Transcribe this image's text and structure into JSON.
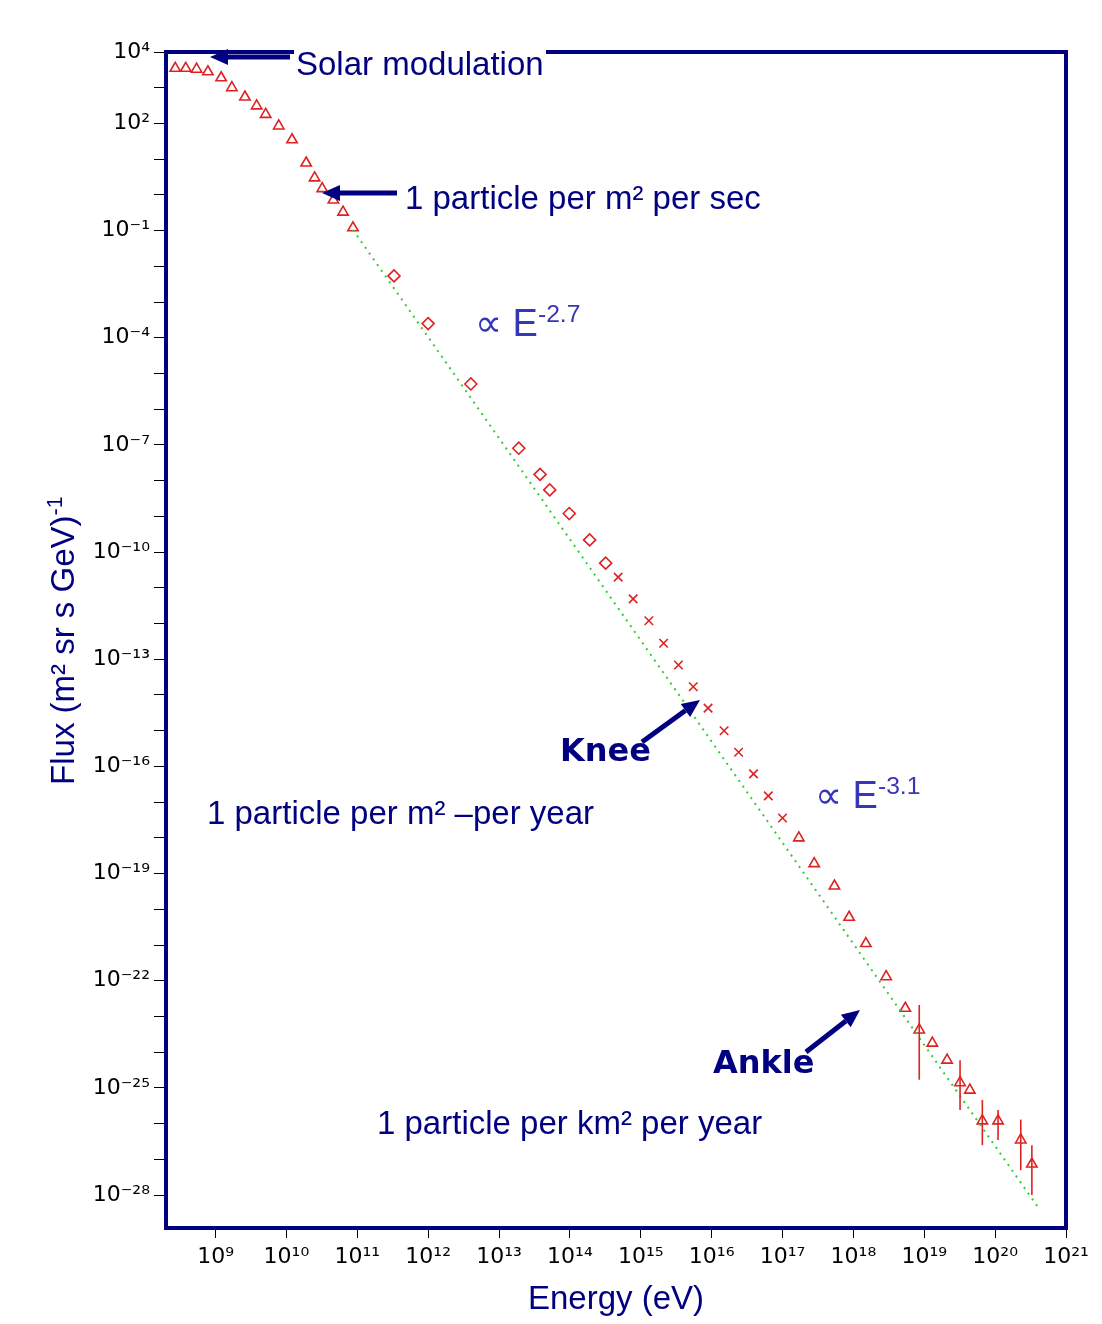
{
  "chart_data": {
    "type": "scatter",
    "xlabel": "Energy (eV)",
    "ylabel": "Flux (m² sr s GeV)$^{-1}$",
    "log": "xy",
    "grid": false,
    "legend": false,
    "xlim": [
      200000000.0,
      1e+21
    ],
    "ylim": [
      1.2e-29,
      10000.0
    ],
    "xticks": [
      {
        "value": 1000000000.0,
        "label": "10⁹"
      },
      {
        "value": 10000000000.0,
        "label": "10¹⁰"
      },
      {
        "value": 100000000000.0,
        "label": "10¹¹"
      },
      {
        "value": 1000000000000.0,
        "label": "10¹²"
      },
      {
        "value": 10000000000000.0,
        "label": "10¹³"
      },
      {
        "value": 100000000000000.0,
        "label": "10¹⁴"
      },
      {
        "value": 1000000000000000.0,
        "label": "10¹⁵"
      },
      {
        "value": 1e+16,
        "label": "10¹⁶"
      },
      {
        "value": 1e+17,
        "label": "10¹⁷"
      },
      {
        "value": 1e+18,
        "label": "10¹⁸"
      },
      {
        "value": 1e+19,
        "label": "10¹⁹"
      },
      {
        "value": 1e+20,
        "label": "10²⁰"
      },
      {
        "value": 1e+21,
        "label": "10²¹"
      }
    ],
    "yticks": [
      {
        "value": 10000.0,
        "label": "10⁴"
      },
      {
        "value": 1000.0,
        "label": null
      },
      {
        "value": 100.0,
        "label": "10²"
      },
      {
        "value": 10.0,
        "label": null
      },
      {
        "value": 1,
        "label": null
      },
      {
        "value": 0.1,
        "label": "10⁻¹"
      },
      {
        "value": 0.01,
        "label": null
      },
      {
        "value": 0.001,
        "label": null
      },
      {
        "value": 0.0001,
        "label": "10⁻⁴"
      },
      {
        "value": 1e-05,
        "label": null
      },
      {
        "value": 1e-06,
        "label": null
      },
      {
        "value": 1e-07,
        "label": "10⁻⁷"
      },
      {
        "value": 1e-08,
        "label": null
      },
      {
        "value": 1e-09,
        "label": null
      },
      {
        "value": 1e-10,
        "label": "10⁻¹⁰"
      },
      {
        "value": 1e-11,
        "label": null
      },
      {
        "value": 1e-12,
        "label": null
      },
      {
        "value": 1e-13,
        "label": "10⁻¹³"
      },
      {
        "value": 1e-14,
        "label": null
      },
      {
        "value": 1e-15,
        "label": null
      },
      {
        "value": 1e-16,
        "label": "10⁻¹⁶"
      },
      {
        "value": 1e-17,
        "label": null
      },
      {
        "value": 1e-18,
        "label": null
      },
      {
        "value": 1e-19,
        "label": "10⁻¹⁹"
      },
      {
        "value": 1e-20,
        "label": null
      },
      {
        "value": 1e-21,
        "label": null
      },
      {
        "value": 1e-22,
        "label": "10⁻²²"
      },
      {
        "value": 1e-23,
        "label": null
      },
      {
        "value": 1e-24,
        "label": null
      },
      {
        "value": 1e-25,
        "label": "10⁻²⁵"
      },
      {
        "value": 1e-26,
        "label": null
      },
      {
        "value": 1e-27,
        "label": null
      },
      {
        "value": 1e-28,
        "label": "10⁻²⁸"
      }
    ],
    "series": [
      {
        "type": "line",
        "color": "#33cc33",
        "line_style": "dotted",
        "marker": "none",
        "x": [
          87000000000.0,
          4.3e+20
        ],
        "values": [
          0.105,
          3.8e-29
        ]
      },
      {
        "color": "#dd2222",
        "marker": "triangle",
        "x": [
          270000000.0,
          380000000.0,
          540000000.0,
          780000000.0,
          1200000000.0,
          1700000000.0,
          2600000000.0,
          3800000000.0,
          5100000000.0,
          7800000000.0,
          12000000000.0,
          19000000000.0,
          25000000000.0,
          32000000000.0,
          46000000000.0,
          63000000000.0,
          87000000000.0
        ],
        "values": [
          3500,
          3500,
          3300,
          2800,
          1900,
          1000,
          550,
          310,
          180,
          85,
          35,
          7.8,
          3.0,
          1.5,
          0.72,
          0.33,
          0.12
        ]
      },
      {
        "color": "#dd2222",
        "marker": "diamond",
        "x": [
          330000000000.0,
          1000000000000.0,
          4000000000000.0,
          19000000000000.0,
          38000000000000.0,
          52000000000000.0,
          98000000000000.0,
          190000000000000.0,
          320000000000000.0
        ],
        "values": [
          0.0054,
          0.00025,
          5.1e-06,
          8.1e-08,
          1.5e-08,
          5.5e-09,
          1.2e-09,
          2.2e-10,
          4.9e-11
        ]
      },
      {
        "color": "#dd2222",
        "marker": "cross",
        "x": [
          480000000000000.0,
          780000000000000.0,
          1300000000000000.0,
          2100000000000000.0,
          3400000000000000.0,
          5500000000000000.0,
          8900000000000000.0,
          1.5e+16,
          2.4e+16,
          3.9e+16,
          6.3e+16,
          1e+17
        ],
        "values": [
          2e-11,
          4.9e-12,
          1.2e-12,
          2.8e-13,
          6.9e-14,
          1.7e-14,
          4.3e-15,
          1e-15,
          2.5e-16,
          6.2e-17,
          1.5e-17,
          3.6e-18
        ]
      },
      {
        "color": "#dd2222",
        "marker": "triangle",
        "x": [
          1.7e+17,
          2.8e+17,
          5.4e+17,
          8.7e+17,
          1.5e+18,
          2.9e+18,
          5.4e+18,
          8.5e+18,
          1.3e+19,
          2.1e+19,
          3.2e+19,
          4.4e+19,
          6.6e+19,
          1.1e+20,
          2.3e+20,
          3.3e+20
        ],
        "values": [
          1e-18,
          1.9e-19,
          4.5e-20,
          6e-21,
          1.1e-21,
          1.3e-22,
          1.7e-23,
          4.2e-24,
          1.8e-24,
          6e-25,
          1.4e-25,
          8.7e-26,
          1.2e-26,
          1.2e-26,
          3.5e-27,
          7.4e-28
        ],
        "errors": [
          null,
          null,
          null,
          null,
          null,
          null,
          null,
          [
            1.7e-25,
            2.1e-23
          ],
          null,
          null,
          [
            2.4e-26,
            6e-25
          ],
          null,
          [
            2.5e-27,
            4.6e-26
          ],
          [
            3.5e-27,
            2.4e-26
          ],
          [
            5e-28,
            1.3e-26
          ],
          [
            1e-28,
            2.5e-27
          ]
        ]
      }
    ],
    "annotations": [
      "Solar modulation",
      "1 particle per m² per sec",
      "∝ E$^{-2.7}$",
      "Knee",
      "∝ E$^{-3.1}$",
      "1 particle per m² –per year",
      "Ankle",
      "1 particle per km² per year"
    ]
  }
}
